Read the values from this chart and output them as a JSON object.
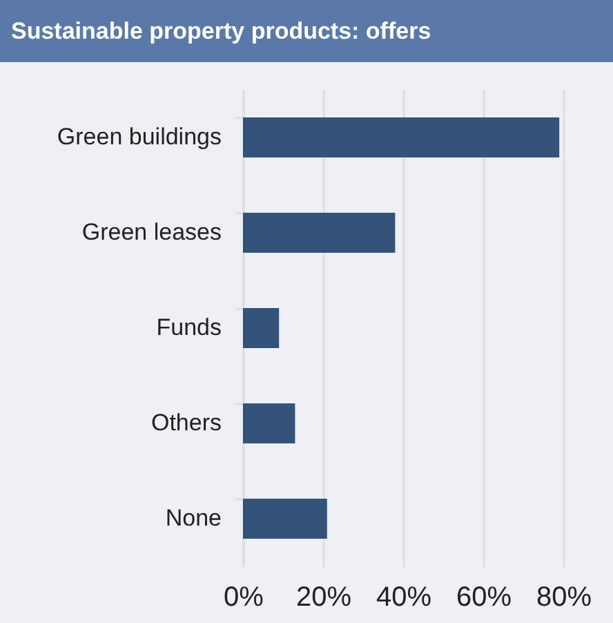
{
  "chart_data": {
    "type": "bar",
    "orientation": "horizontal",
    "title": "Sustainable property products: offers",
    "categories": [
      "Green buildings",
      "Green leases",
      "Funds",
      "Others",
      "None"
    ],
    "values": [
      79,
      38,
      9,
      13,
      21
    ],
    "color": "#34537a",
    "xlim": [
      0,
      80
    ],
    "xticks": [
      {
        "value": 0,
        "label": "0%"
      },
      {
        "value": 20,
        "label": "20%"
      },
      {
        "value": 40,
        "label": "40%"
      },
      {
        "value": 60,
        "label": "60%"
      },
      {
        "value": 80,
        "label": "80%"
      }
    ],
    "grid": "x"
  }
}
